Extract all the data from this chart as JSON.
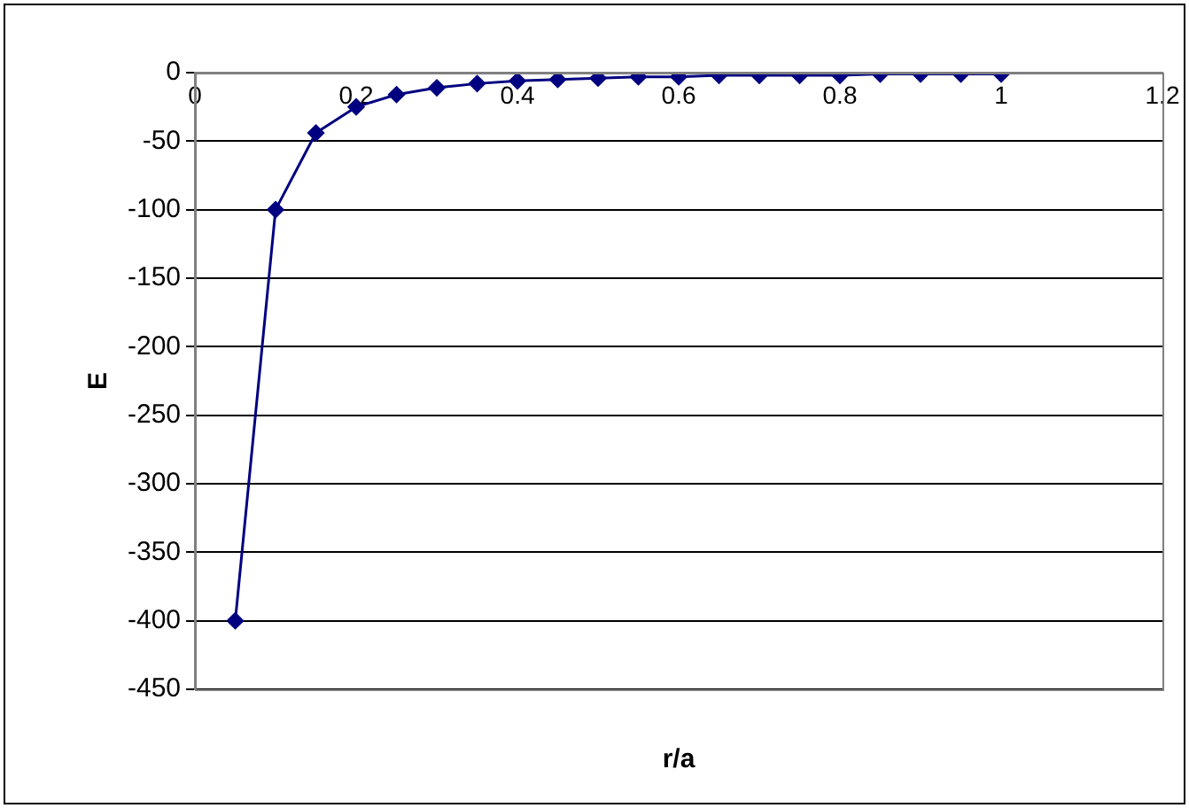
{
  "chart_data": {
    "type": "line",
    "xlabel": "r/a",
    "ylabel": "E",
    "x": [
      0.05,
      0.1,
      0.15,
      0.2,
      0.25,
      0.3,
      0.35,
      0.4,
      0.45,
      0.5,
      0.55,
      0.6,
      0.65,
      0.7,
      0.75,
      0.8,
      0.85,
      0.9,
      0.95,
      1
    ],
    "series": [
      {
        "color": "#000080",
        "values": [
          -400,
          -100,
          -44,
          -25,
          -16,
          -11,
          -8,
          -6,
          -5,
          -4,
          -3,
          -3,
          -2,
          -2,
          -2,
          -2,
          -1,
          -1,
          -1,
          -1
        ]
      }
    ],
    "xlim": [
      0,
      1.2
    ],
    "xticks": [
      0,
      0.2,
      0.4,
      0.6,
      0.8,
      1,
      1.2
    ],
    "ylim": [
      -450,
      0
    ],
    "yticks": [
      -450,
      -400,
      -350,
      -300,
      -250,
      -200,
      -150,
      -100,
      -50,
      0
    ],
    "grid": "y",
    "legend": false,
    "marker": "diamond",
    "line_style": "solid"
  }
}
